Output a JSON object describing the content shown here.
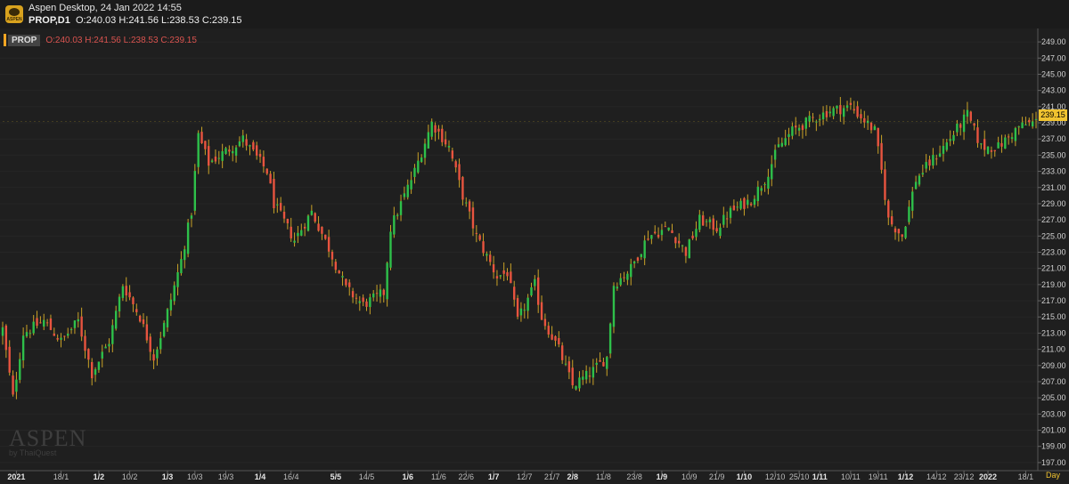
{
  "header": {
    "app_title": "Aspen Desktop, 24 Jan 2022 14:55",
    "symbol_tf": "PROP,D1",
    "ohlc": "O:240.03 H:241.56 L:238.53 C:239.15"
  },
  "legend": {
    "symbol": "PROP",
    "values": "O:240.03  H:241.56  L:238.53  C:239.15"
  },
  "watermark": {
    "brand": "ASPEN",
    "by": "by ThaiQuest"
  },
  "logo_text": "ASPEN",
  "current_price": "239.15",
  "period_label": "Day",
  "colors": {
    "bull": "#2ec04a",
    "bear": "#e8543f",
    "background": "#1f1f1f",
    "price_tag": "#f0c330"
  },
  "chart_data": {
    "type": "candlestick",
    "title": "PROP,D1",
    "ylim": [
      196,
      250
    ],
    "y_ticks": [
      "249.00",
      "247.00",
      "245.00",
      "243.00",
      "241.00",
      "239.00",
      "237.00",
      "235.00",
      "233.00",
      "231.00",
      "229.00",
      "227.00",
      "225.00",
      "223.00",
      "221.00",
      "219.00",
      "217.00",
      "215.00",
      "213.00",
      "211.00",
      "209.00",
      "207.00",
      "205.00",
      "203.00",
      "201.00",
      "199.00",
      "197.00"
    ],
    "x_ticks": [
      {
        "i": 4,
        "label": "2021",
        "major": true
      },
      {
        "i": 17,
        "label": "18/1",
        "major": false
      },
      {
        "i": 28,
        "label": "1/2",
        "major": true
      },
      {
        "i": 37,
        "label": "10/2",
        "major": false
      },
      {
        "i": 48,
        "label": "1/3",
        "major": true
      },
      {
        "i": 56,
        "label": "10/3",
        "major": false
      },
      {
        "i": 65,
        "label": "19/3",
        "major": false
      },
      {
        "i": 75,
        "label": "1/4",
        "major": true
      },
      {
        "i": 84,
        "label": "16/4",
        "major": false
      },
      {
        "i": 97,
        "label": "5/5",
        "major": true
      },
      {
        "i": 106,
        "label": "14/5",
        "major": false
      },
      {
        "i": 118,
        "label": "1/6",
        "major": true
      },
      {
        "i": 127,
        "label": "11/6",
        "major": false
      },
      {
        "i": 135,
        "label": "22/6",
        "major": false
      },
      {
        "i": 143,
        "label": "1/7",
        "major": true
      },
      {
        "i": 152,
        "label": "12/7",
        "major": false
      },
      {
        "i": 160,
        "label": "21/7",
        "major": false
      },
      {
        "i": 166,
        "label": "2/8",
        "major": true
      },
      {
        "i": 175,
        "label": "11/8",
        "major": false
      },
      {
        "i": 184,
        "label": "23/8",
        "major": false
      },
      {
        "i": 192,
        "label": "1/9",
        "major": true
      },
      {
        "i": 200,
        "label": "10/9",
        "major": false
      },
      {
        "i": 208,
        "label": "21/9",
        "major": false
      },
      {
        "i": 216,
        "label": "1/10",
        "major": true
      },
      {
        "i": 225,
        "label": "12/10",
        "major": false
      },
      {
        "i": 232,
        "label": "25/10",
        "major": false
      },
      {
        "i": 238,
        "label": "1/11",
        "major": true
      },
      {
        "i": 247,
        "label": "10/11",
        "major": false
      },
      {
        "i": 255,
        "label": "19/11",
        "major": false
      },
      {
        "i": 263,
        "label": "1/12",
        "major": true
      },
      {
        "i": 272,
        "label": "14/12",
        "major": false
      },
      {
        "i": 280,
        "label": "23/12",
        "major": false
      },
      {
        "i": 287,
        "label": "2022",
        "major": true
      },
      {
        "i": 298,
        "label": "18/1",
        "major": false
      }
    ],
    "waypoints": [
      [
        0,
        213.5
      ],
      [
        3,
        205
      ],
      [
        6,
        213
      ],
      [
        12,
        214.5
      ],
      [
        17,
        212
      ],
      [
        22,
        214.5
      ],
      [
        26,
        208
      ],
      [
        31,
        212
      ],
      [
        35,
        219
      ],
      [
        40,
        215
      ],
      [
        44,
        210
      ],
      [
        47,
        214
      ],
      [
        52,
        222
      ],
      [
        55,
        228
      ],
      [
        57,
        237.5
      ],
      [
        60,
        234
      ],
      [
        70,
        237
      ],
      [
        77,
        233
      ],
      [
        79,
        229
      ],
      [
        85,
        224.5
      ],
      [
        90,
        228
      ],
      [
        95,
        223.5
      ],
      [
        100,
        218.5
      ],
      [
        105,
        216.5
      ],
      [
        111,
        218
      ],
      [
        113,
        226
      ],
      [
        120,
        233
      ],
      [
        125,
        239
      ],
      [
        130,
        236
      ],
      [
        134,
        230
      ],
      [
        138,
        225
      ],
      [
        144,
        220
      ],
      [
        147,
        220.5
      ],
      [
        150,
        214.5
      ],
      [
        155,
        219
      ],
      [
        157,
        215
      ],
      [
        162,
        211
      ],
      [
        166,
        206.5
      ],
      [
        171,
        208
      ],
      [
        176,
        210
      ],
      [
        178,
        219
      ],
      [
        183,
        221
      ],
      [
        188,
        225
      ],
      [
        194,
        226
      ],
      [
        199,
        223
      ],
      [
        203,
        227
      ],
      [
        208,
        226
      ],
      [
        212,
        228
      ],
      [
        218,
        229.5
      ],
      [
        222,
        232
      ],
      [
        226,
        236
      ],
      [
        230,
        238
      ],
      [
        236,
        239.5
      ],
      [
        241,
        240.5
      ],
      [
        247,
        241
      ],
      [
        254,
        238
      ],
      [
        256,
        233
      ],
      [
        258,
        227
      ],
      [
        262,
        225
      ],
      [
        266,
        232
      ],
      [
        270,
        234
      ],
      [
        275,
        236.5
      ],
      [
        281,
        240
      ],
      [
        285,
        236
      ],
      [
        290,
        236
      ],
      [
        296,
        238.5
      ],
      [
        301,
        239.15
      ]
    ]
  }
}
